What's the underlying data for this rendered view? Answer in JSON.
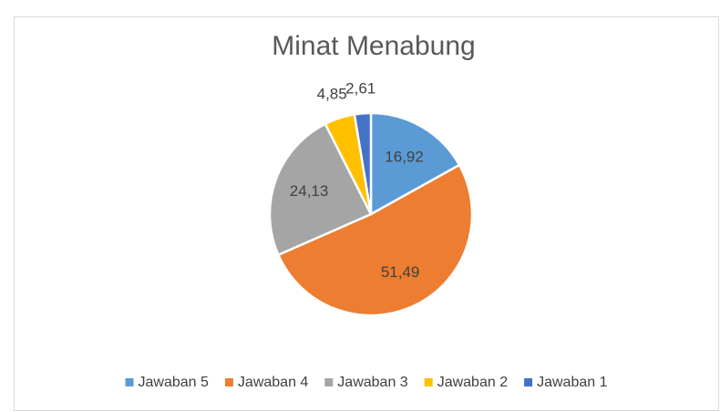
{
  "chart_data": {
    "type": "pie",
    "title": "Minat Menabung",
    "categories": [
      "Jawaban 5",
      "Jawaban 4",
      "Jawaban 3",
      "Jawaban 2",
      "Jawaban 1"
    ],
    "values": [
      16.92,
      51.49,
      24.13,
      4.85,
      2.61
    ],
    "value_labels": [
      "16,92",
      "51,49",
      "24,13",
      "4,85",
      "2,61"
    ],
    "colors": [
      "#5b9bd5",
      "#ed7d31",
      "#a5a5a5",
      "#ffc000",
      "#4472c4"
    ],
    "legend": "bottom"
  }
}
